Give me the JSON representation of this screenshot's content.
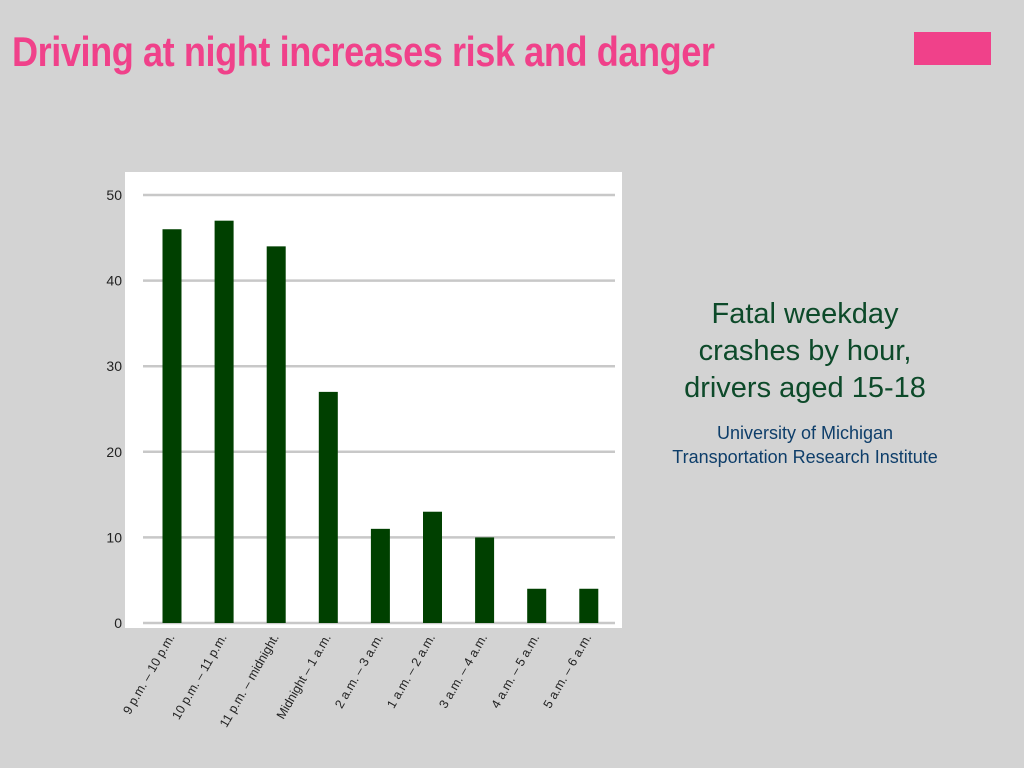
{
  "slide": {
    "title": "Driving at night increases risk and danger",
    "title_color": "#f0418a",
    "accent_color": "#f0418a",
    "background_color": "#d3d3d3"
  },
  "caption": {
    "main_lines": [
      "Fatal weekday",
      "crashes by hour,",
      "drivers aged 15-18"
    ],
    "source_lines": [
      "University of Michigan",
      "Transportation Research Institute"
    ]
  },
  "chart_data": {
    "type": "bar",
    "title": "",
    "xlabel": "",
    "ylabel": "",
    "categories": [
      "9 p.m. – 10 p.m.",
      "10 p.m. – 11 p.m.",
      "11 p.m. – midnight.",
      "Midnight – 1 a.m.",
      "2 a.m. – 3 a.m.",
      "1 a.m. – 2 a.m.",
      "3 a.m. – 4 a.m.",
      "4 a.m. – 5 a.m.",
      "5 a.m. – 6 a.m."
    ],
    "values": [
      46,
      47,
      44,
      27,
      11,
      13,
      10,
      4,
      4
    ],
    "ylim": [
      0,
      50
    ],
    "yticks": [
      0,
      10,
      20,
      30,
      40,
      50
    ],
    "grid": true,
    "legend": "none",
    "bar_color": "#004000",
    "plot_background": "#ffffff",
    "grid_color": "#c8c8c8"
  }
}
